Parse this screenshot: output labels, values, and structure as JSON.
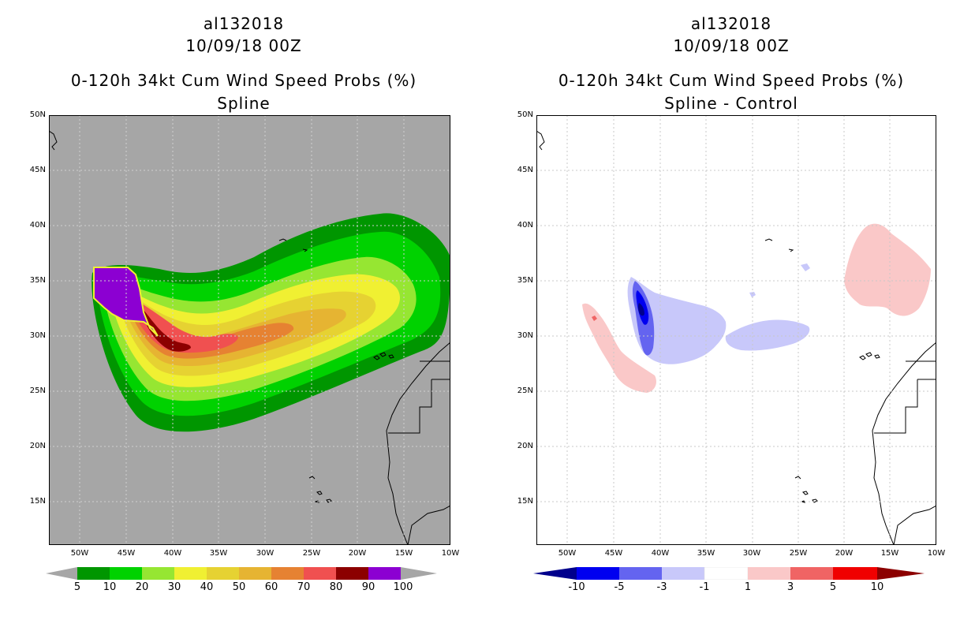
{
  "left_panel": {
    "title_storm": "al132018",
    "title_date": "10/09/18 00Z",
    "title_product": "0-120h 34kt Cum Wind Speed Probs (%)",
    "title_variant": "Spline",
    "background_color": "#a6a6a6",
    "colorbar": {
      "labels": [
        "5",
        "10",
        "20",
        "30",
        "40",
        "50",
        "60",
        "70",
        "80",
        "90",
        "100"
      ],
      "colors": [
        "#009600",
        "#00d200",
        "#96e632",
        "#f0f032",
        "#e6d232",
        "#e6b432",
        "#e68232",
        "#f05050",
        "#8c0000",
        "#8c00d2"
      ]
    }
  },
  "right_panel": {
    "title_storm": "al132018",
    "title_date": "10/09/18 00Z",
    "title_product": "0-120h 34kt Cum Wind Speed Probs (%)",
    "title_variant": "Spline - Control",
    "background_color": "#ffffff",
    "colorbar": {
      "labels": [
        "-10",
        "-5",
        "-3",
        "-1",
        "1",
        "3",
        "5",
        "10"
      ],
      "colors": [
        "#00008c",
        "#0000f0",
        "#6464f0",
        "#c8c8fa",
        "#ffffff",
        "#fac8c8",
        "#f06464",
        "#f00000",
        "#8c0000"
      ]
    }
  },
  "axes": {
    "lat_labels": [
      "50N",
      "45N",
      "40N",
      "35N",
      "30N",
      "25N",
      "20N",
      "15N"
    ],
    "lon_labels": [
      "50W",
      "45W",
      "40W",
      "35W",
      "30W",
      "25W",
      "20W",
      "15W",
      "10W"
    ]
  }
}
